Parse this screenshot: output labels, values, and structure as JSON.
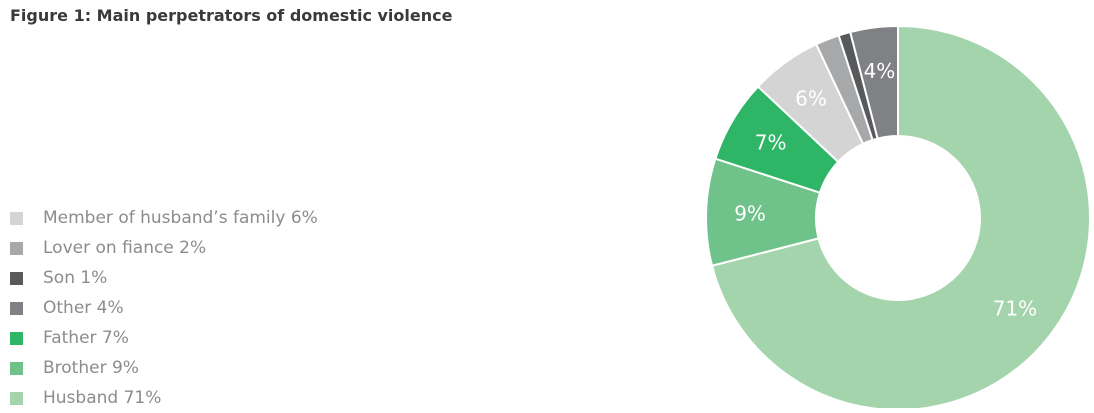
{
  "title": "Figure 1: Main perpetrators of domestic violence",
  "chart_data": {
    "type": "pie",
    "variant": "donut",
    "title": "Figure 1: Main perpetrators of domestic violence",
    "legend_position": "left",
    "slices": [
      {
        "name": "Husband",
        "value": 71,
        "label": "71%",
        "legend": "Husband 71%",
        "color": "#a3d4ac"
      },
      {
        "name": "Brother",
        "value": 9,
        "label": "9%",
        "legend": "Brother 9%",
        "color": "#6fc38a"
      },
      {
        "name": "Father",
        "value": 7,
        "label": "7%",
        "legend": "Father 7%",
        "color": "#2eb566"
      },
      {
        "name": "Member of husband's family",
        "value": 6,
        "label": "6%",
        "legend": "Member of husband’s family 6%",
        "color": "#d4d4d5"
      },
      {
        "name": "Lover on fiance",
        "value": 2,
        "label": "",
        "legend": "Lover on fiance 2%",
        "color": "#a7a8aa"
      },
      {
        "name": "Son",
        "value": 1,
        "label": "",
        "legend": "Son 1%",
        "color": "#58595b"
      },
      {
        "name": "Other",
        "value": 4,
        "label": "4%",
        "legend": "Other 4%",
        "color": "#808184"
      }
    ],
    "legend_order": [
      "Member of husband's family",
      "Lover on fiance",
      "Son",
      "Other",
      "Father",
      "Brother",
      "Husband"
    ]
  }
}
